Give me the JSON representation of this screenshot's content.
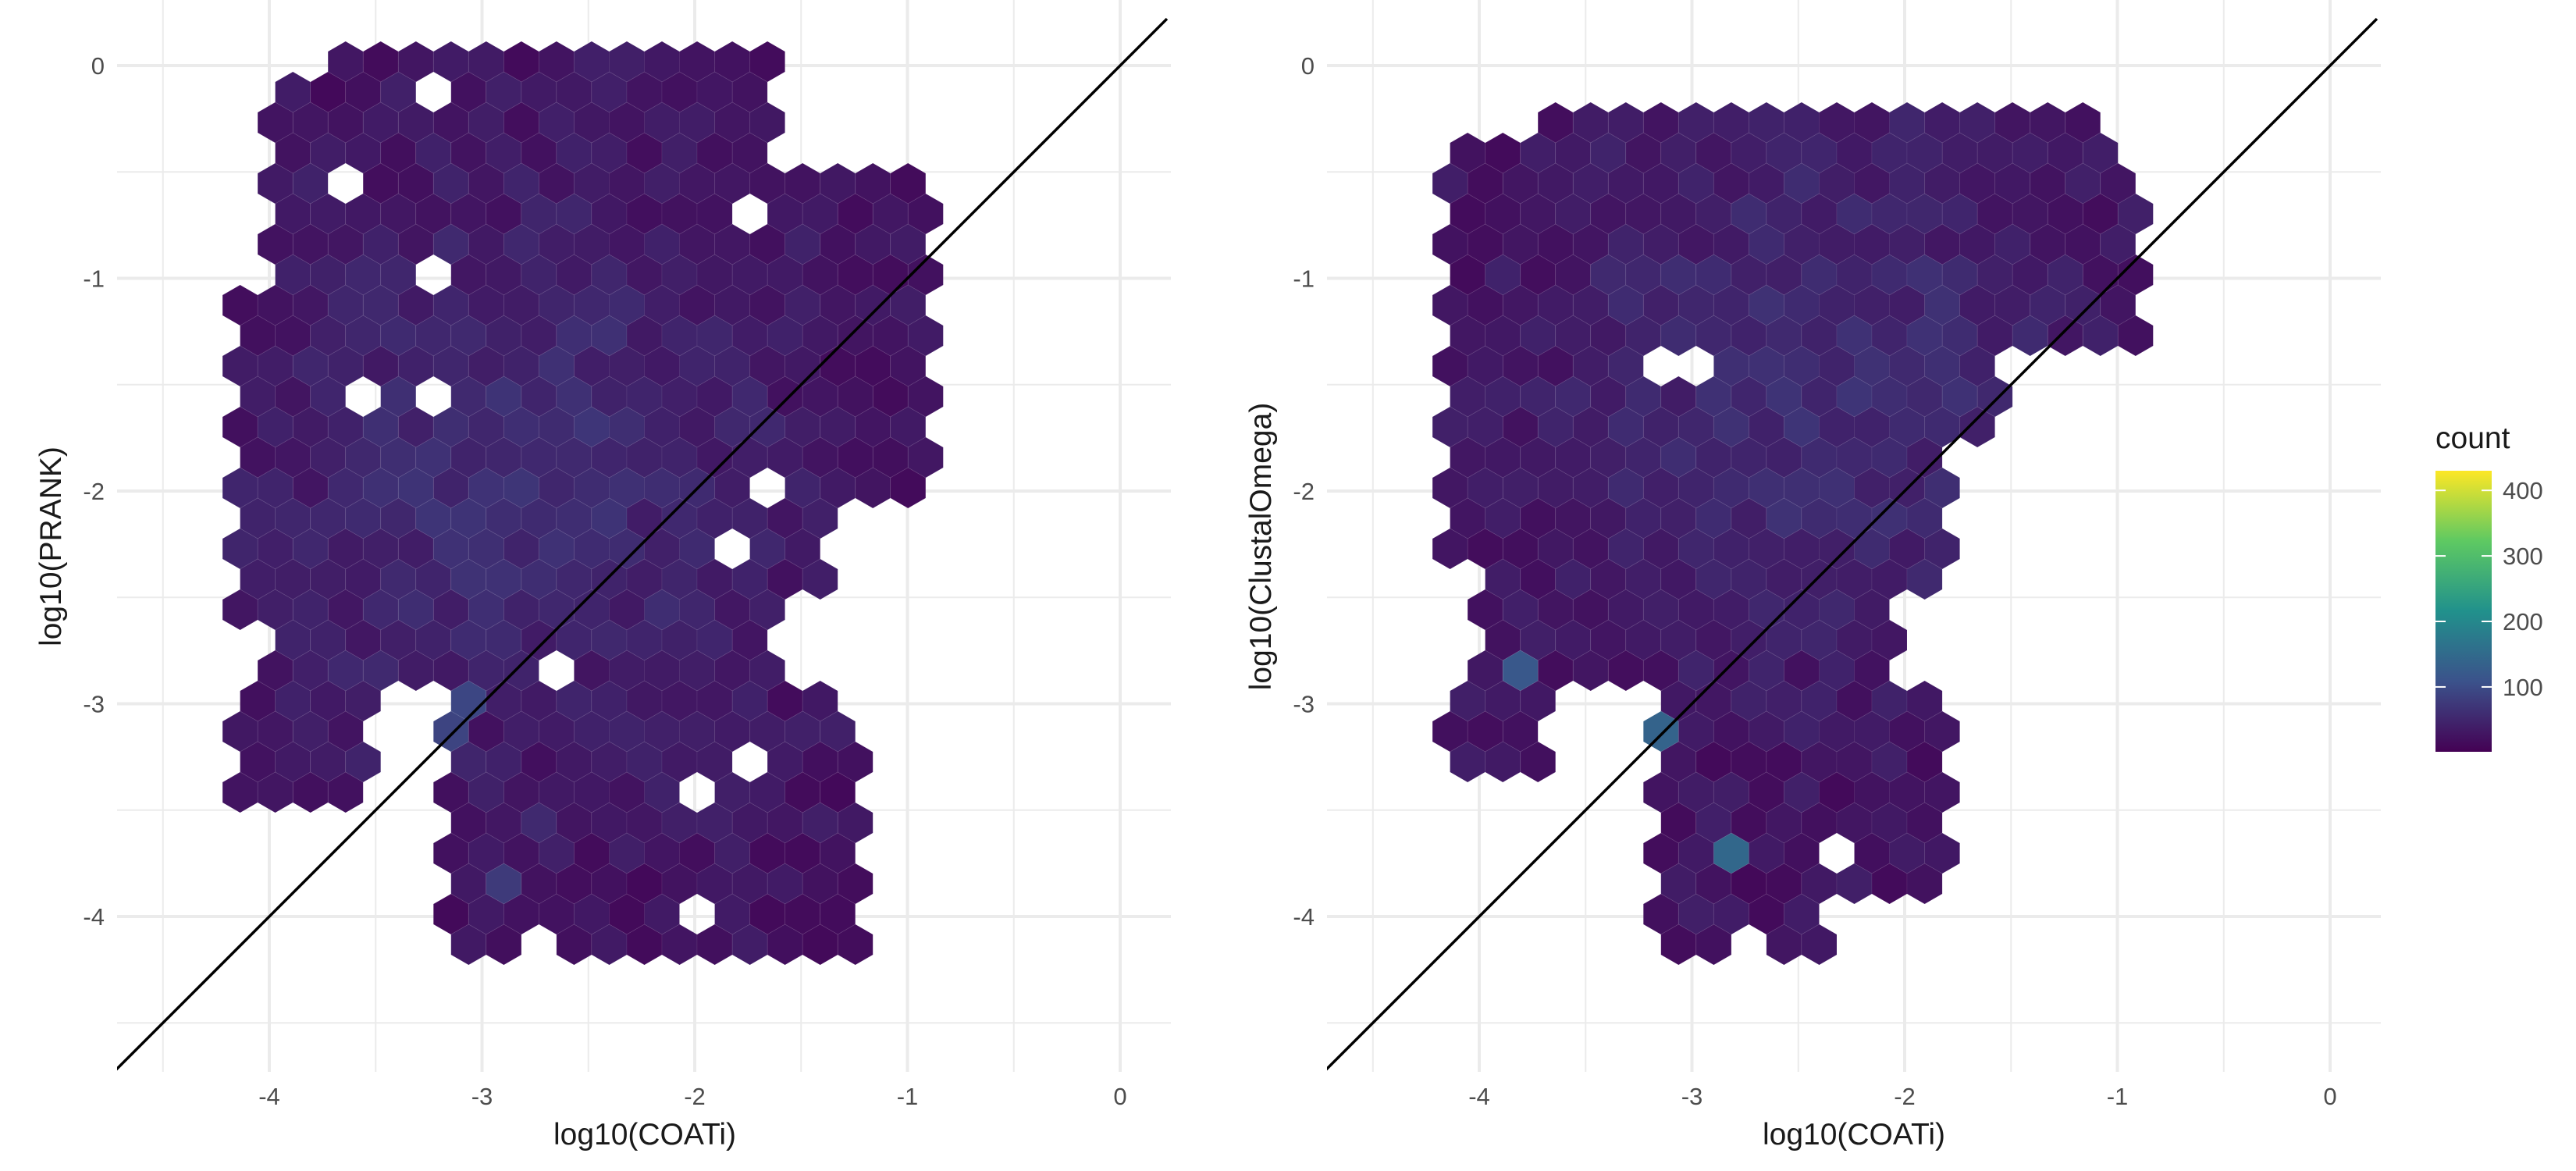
{
  "chart_data": [
    {
      "type": "hexbin",
      "xlabel": "log10(COATi)",
      "ylabel": "log10(PRANK)",
      "xlim": [
        -4.72,
        0.22
      ],
      "ylim": [
        -4.72,
        0.22
      ],
      "x_ticks": [
        -4,
        -3,
        -2,
        -1,
        0
      ],
      "y_ticks": [
        0,
        -1,
        -2,
        -3,
        -4
      ],
      "x_tick_labels": [
        "-4",
        "-3",
        "-2",
        "-1",
        "0"
      ],
      "y_tick_labels": [
        "0",
        "-1",
        "-2",
        "-3",
        "-4"
      ],
      "reference_line": {
        "intercept": 0,
        "slope": 1
      },
      "grid": true,
      "region_notes": "dense band from x=-4.0..-0.9, y=-2.8..0; lower cluster x=-3.1..-1.2, y=-4.2..-2.9; diagonal streak of high counts near y=x from (-4.1,-4.1) to (-3.0,-3.0)",
      "points": [
        {
          "x": -4.1,
          "y": -4.05,
          "count": 150
        },
        {
          "x": -4.0,
          "y": -3.95,
          "count": 330
        },
        {
          "x": -3.9,
          "y": -3.85,
          "count": 400
        },
        {
          "x": -3.8,
          "y": -3.75,
          "count": 420
        },
        {
          "x": -3.65,
          "y": -3.6,
          "count": 390
        },
        {
          "x": -3.7,
          "y": -3.7,
          "count": 340
        },
        {
          "x": -3.5,
          "y": -3.45,
          "count": 300
        },
        {
          "x": -3.4,
          "y": -3.3,
          "count": 180
        },
        {
          "x": -3.3,
          "y": -3.25,
          "count": 150
        },
        {
          "x": -3.2,
          "y": -3.1,
          "count": 170
        },
        {
          "x": -3.1,
          "y": -3.0,
          "count": 120
        },
        {
          "x": -2.95,
          "y": -3.8,
          "count": 170
        },
        {
          "x": -2.8,
          "y": -3.6,
          "count": 150
        },
        {
          "x": -3.7,
          "y": -2.8,
          "count": 130
        },
        {
          "x": -3.8,
          "y": -2.95,
          "count": 110
        },
        {
          "x": -4.05,
          "y": -3.15,
          "count": 90
        }
      ]
    },
    {
      "type": "hexbin",
      "xlabel": "log10(COATi)",
      "ylabel": "log10(ClustalOmega)",
      "xlim": [
        -4.72,
        0.22
      ],
      "ylim": [
        -4.72,
        0.22
      ],
      "x_ticks": [
        -4,
        -3,
        -2,
        -1,
        0
      ],
      "y_ticks": [
        0,
        -1,
        -2,
        -3,
        -4
      ],
      "x_tick_labels": [
        "-4",
        "-3",
        "-2",
        "-1",
        "0"
      ],
      "y_tick_labels": [
        "0",
        "-1",
        "-2",
        "-3",
        "-4"
      ],
      "reference_line": {
        "intercept": 0,
        "slope": 1
      },
      "grid": true,
      "region_notes": "dense band from x=-4.1..-0.9, y=-2.9..-0.2; lower cluster x=-3.2..-2.0, y=-4.2..-3.2; diagonal streak of high counts near y=x from (-4.1,-4.1) to (-3.1,-3.1)",
      "points": [
        {
          "x": -4.1,
          "y": -4.05,
          "count": 140
        },
        {
          "x": -4.0,
          "y": -3.9,
          "count": 320
        },
        {
          "x": -3.85,
          "y": -3.8,
          "count": 400
        },
        {
          "x": -3.75,
          "y": -3.65,
          "count": 420
        },
        {
          "x": -3.6,
          "y": -3.6,
          "count": 340
        },
        {
          "x": -3.5,
          "y": -3.5,
          "count": 390
        },
        {
          "x": -3.4,
          "y": -3.35,
          "count": 260
        },
        {
          "x": -3.3,
          "y": -3.25,
          "count": 170
        },
        {
          "x": -3.15,
          "y": -3.1,
          "count": 160
        },
        {
          "x": -3.8,
          "y": -2.9,
          "count": 200
        },
        {
          "x": -2.8,
          "y": -3.7,
          "count": 150
        },
        {
          "x": -2.6,
          "y": -1.6,
          "count": 110
        },
        {
          "x": -2.3,
          "y": -1.3,
          "count": 100
        }
      ]
    }
  ],
  "legend": {
    "title": "count",
    "ticks": [
      400,
      300,
      200,
      100
    ],
    "tick_labels": [
      "400",
      "300",
      "200",
      "100"
    ],
    "range": [
      1,
      430
    ],
    "colormap": "viridis",
    "colors": [
      "#440154",
      "#3b528b",
      "#21918c",
      "#5ec962",
      "#fde725"
    ]
  }
}
